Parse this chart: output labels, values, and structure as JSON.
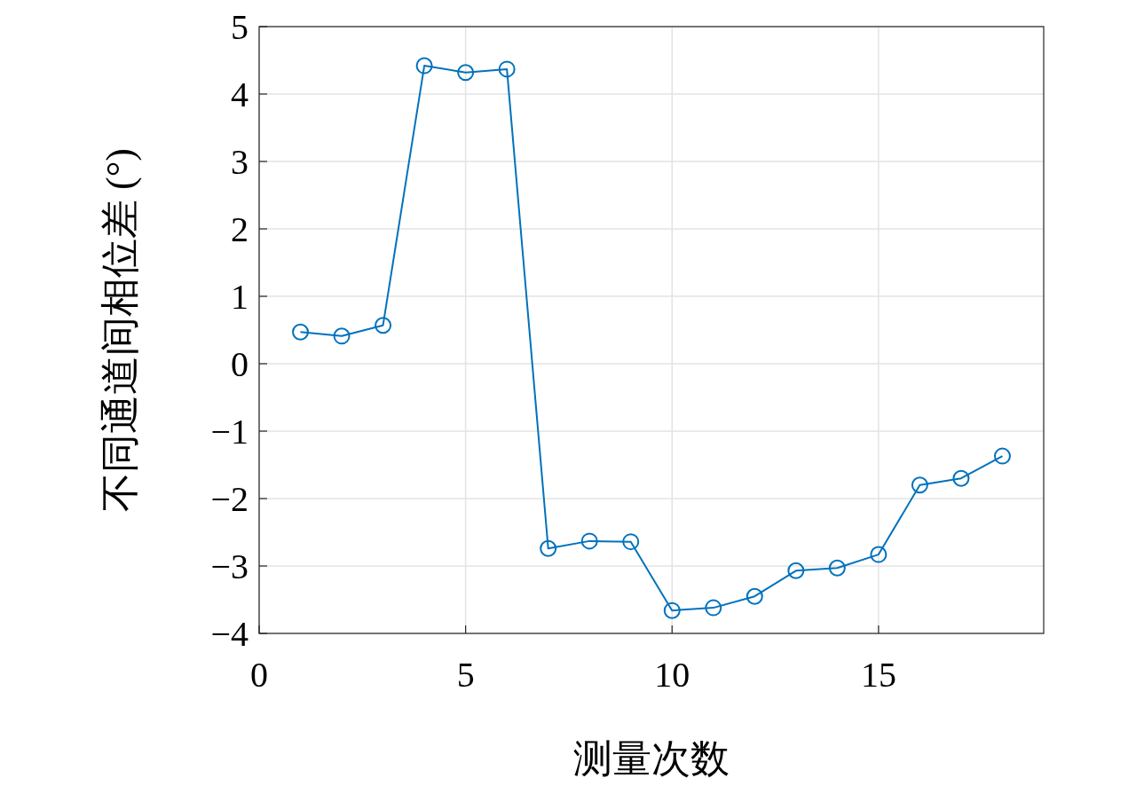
{
  "chart_data": {
    "type": "line",
    "xlabel": "测量次数",
    "ylabel": "不同通道间相位差 (°)",
    "x": [
      1,
      2,
      3,
      4,
      5,
      6,
      7,
      8,
      9,
      10,
      11,
      12,
      13,
      14,
      15,
      16,
      17,
      18
    ],
    "series": [
      {
        "color": "#0072bd",
        "values": [
          0.47,
          0.41,
          0.57,
          4.42,
          4.32,
          4.37,
          -2.74,
          -2.63,
          -2.64,
          -3.66,
          -3.62,
          -3.45,
          -3.07,
          -3.03,
          -2.83,
          -1.8,
          -1.7,
          -1.37
        ]
      }
    ],
    "xlim": [
      0,
      19
    ],
    "xticks": [
      0,
      5,
      10,
      15
    ],
    "ylim": [
      -4,
      5
    ],
    "yticks": [
      {
        "value": -4,
        "label": "−4"
      },
      {
        "value": -3,
        "label": "−3"
      },
      {
        "value": -2,
        "label": "−2"
      },
      {
        "value": -1,
        "label": "−1"
      },
      0,
      1,
      2,
      3,
      4,
      5
    ],
    "grid": true,
    "marker": "circle",
    "line_style": "solid"
  }
}
